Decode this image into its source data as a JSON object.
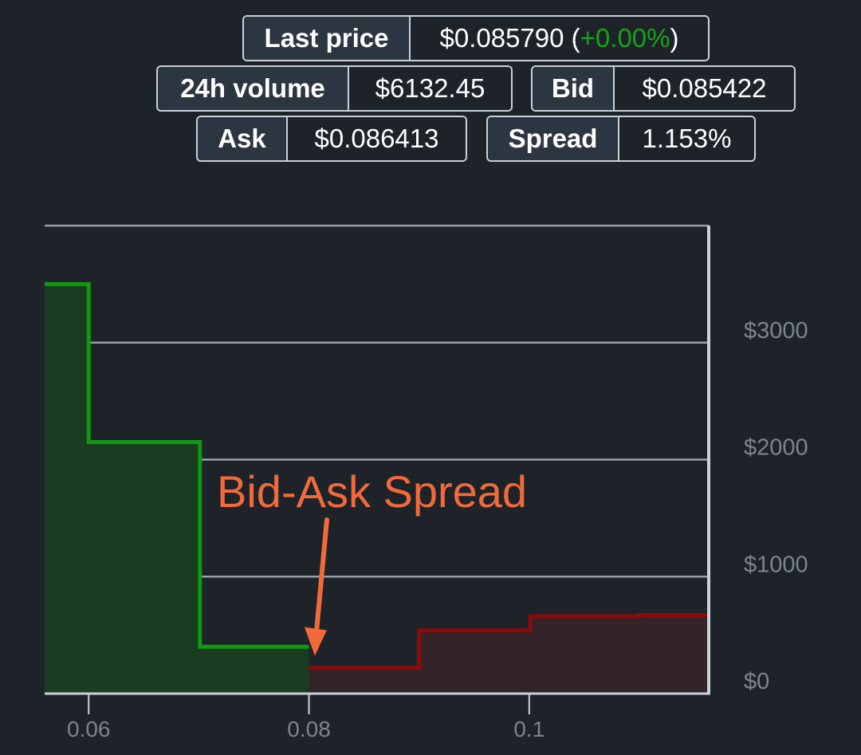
{
  "stats": {
    "last_price": {
      "label": "Last price",
      "value": "$0.085790",
      "open": "(",
      "change": "+0.00%",
      "close": ")"
    },
    "volume": {
      "label": "24h volume",
      "value": "$6132.45"
    },
    "bid": {
      "label": "Bid",
      "value": "$0.085422"
    },
    "ask": {
      "label": "Ask",
      "value": "$0.086413"
    },
    "spread": {
      "label": "Spread",
      "value": "1.153%"
    }
  },
  "colors": {
    "background": "#1e232a",
    "bid_line": "#0f9a0f",
    "bid_fill": "#1a3d22",
    "ask_line": "#8e0a0a",
    "ask_fill": "#35232a",
    "annotation": "#f26a3a",
    "positive_change": "#16a316"
  },
  "chart_data": {
    "type": "area",
    "title": "",
    "xlabel": "",
    "ylabel": "",
    "xlim": [
      0.056,
      0.1163
    ],
    "ylim": [
      0,
      4000
    ],
    "x_ticks": [
      0.06,
      0.08,
      0.1
    ],
    "x_tick_labels": [
      "0.06",
      "0.08",
      "0.1"
    ],
    "y_ticks": [
      0,
      1000,
      2000,
      3000
    ],
    "y_tick_labels": [
      "$0",
      "$1000",
      "$2000",
      "$3000"
    ],
    "y_axis_side": "right",
    "grid": true,
    "series": [
      {
        "side": "bid",
        "points": [
          [
            0.056,
            3500
          ],
          [
            0.06,
            3500
          ],
          [
            0.06,
            2150
          ],
          [
            0.0701,
            2150
          ],
          [
            0.0701,
            400
          ],
          [
            0.08,
            400
          ]
        ]
      },
      {
        "side": "ask",
        "points": [
          [
            0.08,
            220
          ],
          [
            0.09,
            220
          ],
          [
            0.09,
            540
          ],
          [
            0.1001,
            540
          ],
          [
            0.1001,
            660
          ],
          [
            0.11,
            660
          ],
          [
            0.11,
            670
          ],
          [
            0.1163,
            670
          ]
        ]
      }
    ],
    "annotations": [
      {
        "text": "Bid-Ask Spread",
        "arrow_to": [
          0.0801,
          310
        ]
      }
    ]
  }
}
